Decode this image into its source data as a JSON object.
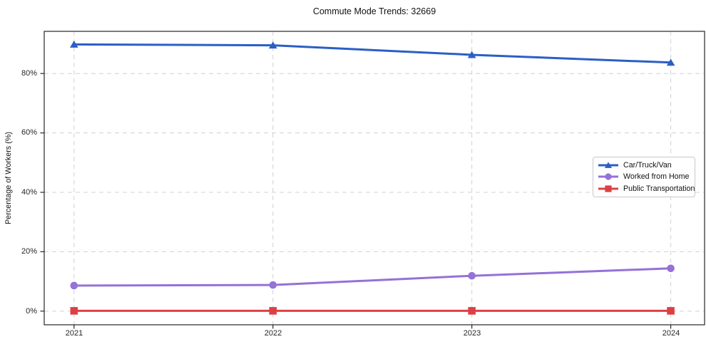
{
  "chart_data": {
    "type": "line",
    "title": "Commute Mode Trends: 32669",
    "xlabel": "",
    "ylabel": "Percentage of Workers (%)",
    "x": [
      2021,
      2022,
      2023,
      2024
    ],
    "xtick_labels": [
      "2021",
      "2022",
      "2023",
      "2024"
    ],
    "yticks": [
      0,
      20,
      40,
      60,
      80
    ],
    "ytick_labels": [
      "0%",
      "20%",
      "40%",
      "60%",
      "80%"
    ],
    "xlim": [
      2020.85,
      2024.17
    ],
    "ylim": [
      -4.6,
      94.2
    ],
    "grid": "dashed",
    "legend_position": "center-right",
    "series": [
      {
        "name": "Car/Truck/Van",
        "marker": "triangle",
        "color": "#2a5fc5",
        "values": [
          89.8,
          89.5,
          86.3,
          83.7
        ]
      },
      {
        "name": "Worked from Home",
        "marker": "circle",
        "color": "#9571d8",
        "values": [
          8.6,
          8.8,
          11.9,
          14.4
        ]
      },
      {
        "name": "Public Transportation",
        "marker": "square",
        "color": "#dc4045",
        "values": [
          0.1,
          0.1,
          0.1,
          0.1
        ]
      }
    ]
  },
  "colors": {
    "background": "#ffffff",
    "spine": "#262626",
    "gridline": "#d0d0d0",
    "tick_text": "#262626"
  }
}
